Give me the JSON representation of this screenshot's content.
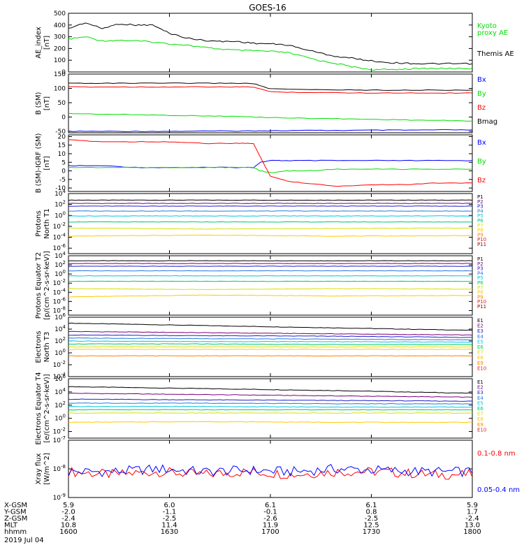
{
  "title": "GOES-16",
  "date_label": "2019 Jul 04",
  "colors": {
    "black": "#000000",
    "green": "#00dd00",
    "red": "#ff0000",
    "blue": "#0000ff",
    "P1": "#000000",
    "P2": "#7a007a",
    "P3": "#2020c8",
    "P4": "#2878e0",
    "P5": "#00c8e0",
    "P6": "#00c870",
    "P7": "#d8e000",
    "P8": "#ffc800",
    "P9": "#ff8000",
    "P10": "#e02020",
    "P11": "#a00000"
  },
  "x_axis": {
    "rows": [
      {
        "label": "X-GSM",
        "values": [
          "5.9",
          "6.0",
          "6.1",
          "6.1",
          "5.9"
        ]
      },
      {
        "label": "Y-GSM",
        "values": [
          "-2.0",
          "-1.1",
          "-0.1",
          "0.8",
          "1.7"
        ]
      },
      {
        "label": "Z-GSM",
        "values": [
          "-2.4",
          "-2.5",
          "-2.6",
          "-2.5",
          "-2.4"
        ]
      },
      {
        "label": "MLT",
        "values": [
          "10.8",
          "11.4",
          "11.9",
          "12.5",
          "13.0"
        ]
      },
      {
        "label": "hhmm",
        "values": [
          "1600",
          "1630",
          "1700",
          "1730",
          "1800"
        ]
      }
    ]
  },
  "chart_data": [
    {
      "type": "line",
      "ylabel": "AE_index [nT]",
      "ylim": [
        0,
        500
      ],
      "yticks": [
        "0",
        "100",
        "200",
        "300",
        "400",
        "500"
      ],
      "x": [
        1600,
        1605,
        1610,
        1615,
        1620,
        1625,
        1630,
        1635,
        1640,
        1645,
        1650,
        1655,
        1700,
        1705,
        1710,
        1715,
        1720,
        1725,
        1730,
        1735,
        1740,
        1745,
        1750,
        1755,
        1800
      ],
      "series": [
        {
          "name": "Kyoto proxy AE",
          "color": "green",
          "values": [
            280,
            300,
            265,
            270,
            265,
            255,
            240,
            230,
            210,
            195,
            185,
            180,
            175,
            165,
            130,
            95,
            70,
            40,
            20,
            20,
            25,
            30,
            30,
            30,
            30
          ]
        },
        {
          "name": "Themis AE",
          "color": "black",
          "values": [
            370,
            420,
            370,
            410,
            400,
            400,
            330,
            290,
            270,
            260,
            260,
            245,
            240,
            230,
            195,
            160,
            130,
            115,
            95,
            80,
            75,
            70,
            70,
            70,
            70
          ]
        }
      ]
    },
    {
      "type": "line",
      "ylabel": "B (SM) [nT]",
      "ylim": [
        -55,
        150
      ],
      "yticks": [
        "-50",
        "0",
        "50",
        "100",
        "150"
      ],
      "x": [
        1600,
        1610,
        1620,
        1630,
        1640,
        1650,
        1655,
        1700,
        1710,
        1720,
        1730,
        1740,
        1750,
        1800
      ],
      "series": [
        {
          "name": "Bx",
          "color": "blue",
          "values": [
            -50,
            -50,
            -50,
            -50,
            -49,
            -49,
            -48,
            -48,
            -47,
            -47,
            -46,
            -46,
            -45,
            -45
          ]
        },
        {
          "name": "By",
          "color": "green",
          "values": [
            12,
            10,
            8,
            6,
            4,
            2,
            0,
            -2,
            -4,
            -6,
            -8,
            -10,
            -12,
            -14
          ]
        },
        {
          "name": "Bz",
          "color": "red",
          "values": [
            105,
            105,
            105,
            105,
            105,
            105,
            105,
            88,
            86,
            85,
            84,
            84,
            84,
            84
          ]
        },
        {
          "name": "Bmag",
          "color": "black",
          "values": [
            118,
            118,
            118,
            118,
            118,
            118,
            117,
            98,
            96,
            95,
            94,
            94,
            94,
            94
          ]
        }
      ]
    },
    {
      "type": "line",
      "ylabel": "B (SM)-IGRF (SM) [nT]",
      "ylim": [
        -12,
        21
      ],
      "yticks": [
        "-10",
        "-5",
        "0",
        "5",
        "10",
        "15",
        "20"
      ],
      "x": [
        1600,
        1610,
        1620,
        1630,
        1640,
        1650,
        1655,
        1657,
        1700,
        1705,
        1710,
        1720,
        1730,
        1740,
        1750,
        1800
      ],
      "series": [
        {
          "name": "Bx",
          "color": "blue",
          "values": [
            3,
            3,
            2,
            2,
            2,
            2,
            2,
            5,
            6,
            6,
            6,
            6,
            6,
            6,
            6,
            6
          ]
        },
        {
          "name": "By",
          "color": "green",
          "values": [
            2,
            2,
            2,
            2,
            2,
            2,
            2,
            0,
            -1,
            0,
            0,
            1,
            1,
            1,
            1,
            1
          ]
        },
        {
          "name": "Bz",
          "color": "red",
          "values": [
            18,
            17,
            17,
            17,
            16,
            16,
            16,
            8,
            -3,
            -6,
            -7,
            -9,
            -8,
            -8,
            -7,
            -7
          ]
        }
      ]
    },
    {
      "type": "line",
      "ylabel": "Protons North T1",
      "ylim": [
        -7,
        4
      ],
      "yticks": [
        "10^-6",
        "10^-4",
        "10^-2",
        "10^0",
        "10^2",
        "10^4"
      ],
      "series": [
        {
          "name": "P1",
          "color": "P1",
          "values": [
            2.8,
            2.8,
            2.8,
            2.8
          ]
        },
        {
          "name": "P2",
          "color": "P2",
          "values": [
            2.2,
            2.2,
            2.2,
            2.2
          ]
        },
        {
          "name": "P3",
          "color": "P3",
          "values": [
            1.7,
            1.7,
            1.7,
            1.7
          ]
        },
        {
          "name": "P4",
          "color": "P4",
          "values": [
            0.8,
            0.8,
            0.8,
            0.8
          ]
        },
        {
          "name": "P5",
          "color": "P5",
          "values": [
            -0.1,
            -0.1,
            -0.1,
            -0.1
          ]
        },
        {
          "name": "P6",
          "color": "P6",
          "values": [
            -1.2,
            -1.2,
            -1.2,
            -1.2
          ]
        },
        {
          "name": "P7",
          "color": "P7",
          "values": [
            -2.3,
            -2.5,
            -2.4,
            -2.3
          ]
        },
        {
          "name": "P8",
          "color": "P8",
          "values": [
            -3.8,
            -3.6,
            -3.8,
            -3.7
          ]
        },
        {
          "name": "P9",
          "color": "P9",
          "values": []
        },
        {
          "name": "P10",
          "color": "P10",
          "values": []
        },
        {
          "name": "P11",
          "color": "P11",
          "values": []
        }
      ]
    },
    {
      "type": "line",
      "ylabel": "Protons Equator T2 [p/(cm^2-s-sr-keV)]",
      "ylim": [
        -9,
        4
      ],
      "yticks": [
        "10^-8",
        "10^-6",
        "10^-4",
        "10^-2",
        "10^0",
        "10^2",
        "10^4"
      ],
      "series": [
        {
          "name": "P1",
          "color": "P1",
          "values": [
            2.9,
            2.9,
            2.9,
            2.9
          ]
        },
        {
          "name": "P2",
          "color": "P2",
          "values": [
            2.3,
            2.3,
            2.3,
            2.3
          ]
        },
        {
          "name": "P3",
          "color": "P3",
          "values": [
            1.7,
            1.7,
            1.7,
            1.7
          ]
        },
        {
          "name": "P4",
          "color": "P4",
          "values": [
            0.7,
            0.7,
            0.7,
            0.7
          ]
        },
        {
          "name": "P5",
          "color": "P5",
          "values": [
            -0.4,
            -0.4,
            -0.4,
            -0.4
          ]
        },
        {
          "name": "P6",
          "color": "P6",
          "values": [
            -1.6,
            -1.6,
            -1.6,
            -1.6
          ]
        },
        {
          "name": "P7",
          "color": "P7",
          "values": [
            -3.2,
            -3.4,
            -3.2,
            -3.3
          ]
        },
        {
          "name": "P8",
          "color": "P8",
          "values": [
            -5.0,
            -4.6,
            -4.8,
            -4.7
          ]
        },
        {
          "name": "P9",
          "color": "P9",
          "values": []
        },
        {
          "name": "P10",
          "color": "P10",
          "values": []
        },
        {
          "name": "P11",
          "color": "P11",
          "values": []
        }
      ]
    },
    {
      "type": "line",
      "ylabel": "Electrons North T3",
      "ylim": [
        -4,
        6
      ],
      "yticks": [
        "10^-4",
        "10^-2",
        "10^0",
        "10^2",
        "10^4",
        "10^6"
      ],
      "series": [
        {
          "name": "E1",
          "color": "P1",
          "values": [
            5.0,
            4.6,
            4.2,
            3.8
          ]
        },
        {
          "name": "E2",
          "color": "P2",
          "values": [
            3.6,
            3.4,
            3.2,
            3.0
          ]
        },
        {
          "name": "E3",
          "color": "P3",
          "values": [
            3.0,
            2.9,
            2.8,
            2.6
          ]
        },
        {
          "name": "E4",
          "color": "P4",
          "values": [
            2.5,
            2.4,
            2.3,
            2.2
          ]
        },
        {
          "name": "E5",
          "color": "P5",
          "values": [
            2.0,
            1.9,
            1.9,
            1.8
          ]
        },
        {
          "name": "E6",
          "color": "P6",
          "values": [
            1.5,
            1.5,
            1.4,
            1.4
          ]
        },
        {
          "name": "E7",
          "color": "P7",
          "values": [
            1.0,
            1.0,
            1.0,
            1.0
          ]
        },
        {
          "name": "E8",
          "color": "P8",
          "values": [
            0.6,
            0.6,
            0.6,
            0.6
          ]
        },
        {
          "name": "E9",
          "color": "P9",
          "values": [
            -0.5,
            -0.5,
            -0.5,
            -0.5
          ]
        },
        {
          "name": "E10",
          "color": "P10",
          "values": []
        }
      ]
    },
    {
      "type": "line",
      "ylabel": "Electrons Equator T4 [e/(cm^2-s-sr-keV)]",
      "ylim": [
        -3,
        6
      ],
      "yticks": [
        "10^-2",
        "10^0",
        "10^2",
        "10^4",
        "10^6"
      ],
      "series": [
        {
          "name": "E1",
          "color": "P1",
          "values": [
            4.8,
            4.5,
            4.2,
            3.8
          ]
        },
        {
          "name": "E2",
          "color": "P2",
          "values": [
            3.8,
            3.6,
            3.4,
            3.2
          ]
        },
        {
          "name": "E3",
          "color": "P3",
          "values": [
            2.9,
            2.8,
            2.7,
            2.6
          ]
        },
        {
          "name": "E4",
          "color": "P4",
          "values": [
            2.3,
            2.3,
            2.2,
            2.2
          ]
        },
        {
          "name": "E5",
          "color": "P5",
          "values": [
            1.8,
            1.8,
            1.7,
            1.7
          ]
        },
        {
          "name": "E6",
          "color": "P6",
          "values": [
            1.3,
            1.3,
            1.3,
            1.3
          ]
        },
        {
          "name": "E7",
          "color": "P7",
          "values": [
            0.8,
            0.8,
            0.8,
            0.8
          ]
        },
        {
          "name": "E8",
          "color": "P8",
          "values": [
            -0.6,
            -0.5,
            -0.6,
            -0.6
          ]
        },
        {
          "name": "E9",
          "color": "P9",
          "values": []
        },
        {
          "name": "E10",
          "color": "P10",
          "values": []
        }
      ]
    },
    {
      "type": "line",
      "ylabel": "Xray flux [W/m^2]",
      "ylim": [
        -9,
        -7
      ],
      "yticks": [
        "10^-9",
        "10^-8",
        "10^-7"
      ],
      "series": [
        {
          "name": "0.1-0.8 nm",
          "color": "red",
          "values": [
            -8.1,
            -8.2,
            -8.1,
            -8.2,
            -8.1,
            -8.2,
            -8.1,
            -8.1,
            -8.2,
            -8.2
          ]
        },
        {
          "name": "0.05-0.4 nm",
          "color": "blue",
          "values": [
            -8.1,
            -8.1,
            -8.0,
            -8.1,
            -8.05,
            -8.1,
            -8.0,
            -8.05,
            -8.1,
            -8.1
          ]
        }
      ]
    }
  ],
  "legends": {
    "panel1": [
      {
        "text": "Kyoto",
        "color": "green"
      },
      {
        "text": "proxy AE",
        "color": "green"
      },
      {
        "text": "Themis AE",
        "color": "black"
      }
    ],
    "panel2": [
      {
        "text": "Bx",
        "color": "blue"
      },
      {
        "text": "By",
        "color": "green"
      },
      {
        "text": "Bz",
        "color": "red"
      },
      {
        "text": "Bmag",
        "color": "black"
      }
    ],
    "panel3": [
      {
        "text": "Bx",
        "color": "blue"
      },
      {
        "text": "By",
        "color": "green"
      },
      {
        "text": "Bz",
        "color": "red"
      }
    ],
    "panel4": [
      "P1",
      "P2",
      "P3",
      "P4",
      "P5",
      "P6",
      "P7",
      "P8",
      "P9",
      "P10",
      "P11"
    ],
    "panel5": [
      "P1",
      "P2",
      "P3",
      "P4",
      "P5",
      "P6",
      "P7",
      "P8",
      "P9",
      "P10",
      "P11"
    ],
    "panel6": [
      "E1",
      "E2",
      "E3",
      "E4",
      "E5",
      "E6",
      "E7",
      "E8",
      "E9",
      "E10"
    ],
    "panel7": [
      "E1",
      "E2",
      "E3",
      "E4",
      "E5",
      "E6",
      "E7",
      "E8",
      "E9",
      "E10"
    ],
    "panel8": [
      {
        "text": "0.1-0.8 nm",
        "color": "red"
      },
      {
        "text": "0.05-0.4 nm",
        "color": "blue"
      }
    ]
  }
}
